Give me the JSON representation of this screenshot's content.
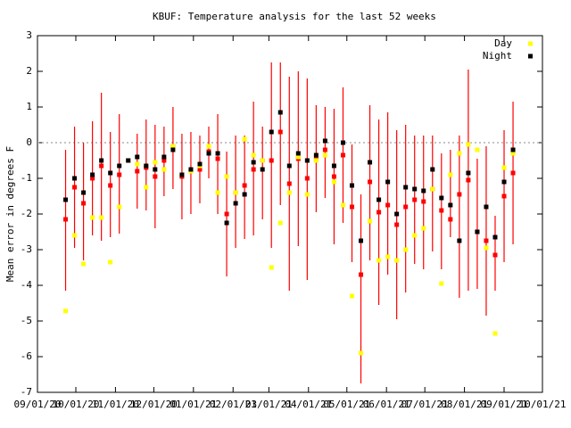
{
  "chart_data": {
    "type": "errorbar",
    "title": "KBUF: Temperature analysis for the last 52 weeks",
    "ylabel": "Mean error in degrees F",
    "x": [
      "09/23/20",
      "09/30/20",
      "10/07/20",
      "10/14/20",
      "10/21/20",
      "10/28/20",
      "11/04/20",
      "11/11/20",
      "11/18/20",
      "11/25/20",
      "12/02/20",
      "12/09/20",
      "12/16/20",
      "12/23/20",
      "12/30/20",
      "01/06/21",
      "01/13/21",
      "01/20/21",
      "01/27/21",
      "02/03/21",
      "02/10/21",
      "02/17/21",
      "02/24/21",
      "03/03/21",
      "03/10/21",
      "03/17/21",
      "03/24/21",
      "03/31/21",
      "04/07/21",
      "04/14/21",
      "04/21/21",
      "04/28/21",
      "05/05/21",
      "05/12/21",
      "05/19/21",
      "05/26/21",
      "06/02/21",
      "06/09/21",
      "06/16/21",
      "06/23/21",
      "06/30/21",
      "07/07/21",
      "07/14/21",
      "07/21/21",
      "07/28/21",
      "08/04/21",
      "08/11/21",
      "08/18/21",
      "08/25/21",
      "09/01/21",
      "09/08/21"
    ],
    "series": [
      {
        "name": "Day",
        "color": "#ffff00",
        "values": [
          -4.72,
          -2.6,
          -3.4,
          -2.1,
          -2.1,
          -3.35,
          -1.8,
          -0.5,
          -0.6,
          -1.25,
          -0.55,
          -0.75,
          -0.1,
          -0.9,
          -0.8,
          -0.65,
          -0.1,
          -1.4,
          -0.95,
          -1.4,
          0.1,
          -0.35,
          -0.5,
          -3.5,
          -2.25,
          -1.4,
          -0.4,
          -1.45,
          -0.5,
          -0.35,
          -1.1,
          -1.75,
          -4.3,
          -5.9,
          -2.2,
          -3.3,
          -3.2,
          -3.3,
          -3.0,
          -2.6,
          -2.4,
          -1.3,
          -3.95,
          -0.9,
          -0.3,
          -0.05,
          -0.2,
          -2.95,
          -5.35,
          -0.7,
          -0.3
        ]
      },
      {
        "name": "Night",
        "color": "#000000",
        "values": [
          -1.6,
          -1.0,
          -1.4,
          -0.9,
          -0.5,
          -0.85,
          -0.65,
          -0.5,
          -0.4,
          -0.65,
          -0.75,
          -0.4,
          -0.2,
          -0.9,
          -0.75,
          -0.6,
          -0.3,
          -0.3,
          -2.25,
          -1.7,
          -1.45,
          -0.55,
          -0.75,
          0.3,
          0.85,
          -0.65,
          -0.3,
          -0.5,
          -0.35,
          0.05,
          -0.65,
          0.0,
          -1.2,
          -2.75,
          -0.55,
          -1.6,
          -1.1,
          -2.0,
          -1.25,
          -1.3,
          -1.35,
          -0.75,
          -1.55,
          -1.75,
          -2.75,
          -0.85,
          -2.5,
          -1.8,
          -2.65,
          -1.1,
          -0.2
        ]
      }
    ],
    "mean_color": "#ff0000",
    "mean": [
      -2.15,
      -1.25,
      -1.7,
      -1.0,
      -0.65,
      -1.2,
      -0.9,
      -0.5,
      -0.8,
      -0.7,
      -0.95,
      -0.5,
      -0.1,
      -0.95,
      -0.8,
      -0.75,
      -0.25,
      -0.45,
      -2.0,
      -1.4,
      -1.2,
      -0.75,
      -0.5,
      -0.5,
      0.3,
      -1.15,
      -0.45,
      -1.0,
      -0.45,
      -0.2,
      -0.95,
      -0.35,
      -1.8,
      -3.7,
      -1.1,
      -1.95,
      -1.75,
      -2.3,
      -1.8,
      -1.6,
      -1.65,
      -1.3,
      -1.9,
      -2.15,
      -1.45,
      -1.05,
      -2.5,
      -2.75,
      -3.15,
      -1.5,
      -0.85
    ],
    "error_low": [
      -4.15,
      -2.95,
      -3.3,
      -2.6,
      -2.75,
      -2.65,
      -2.55,
      -0.5,
      -1.85,
      -1.9,
      -2.4,
      -1.5,
      -1.3,
      -2.15,
      -2.0,
      -1.7,
      -1.0,
      -2.0,
      -3.75,
      -2.95,
      -2.7,
      -2.6,
      -2.15,
      -2.95,
      -1.75,
      -4.15,
      -2.9,
      -3.85,
      -1.95,
      -1.55,
      -2.85,
      -2.25,
      -3.35,
      -6.75,
      -3.3,
      -4.55,
      -3.7,
      -4.95,
      -4.2,
      -3.4,
      -3.55,
      -3.05,
      -3.55,
      -2.65,
      -4.35,
      -4.15,
      -4.1,
      -4.85,
      -4.15,
      -3.35,
      -2.85
    ],
    "error_high": [
      -0.2,
      0.45,
      0.0,
      0.6,
      1.4,
      0.3,
      0.8,
      -0.5,
      0.25,
      0.65,
      0.5,
      0.45,
      1.0,
      0.25,
      0.3,
      0.2,
      0.45,
      0.8,
      -0.25,
      0.2,
      0.2,
      1.15,
      0.45,
      2.25,
      2.25,
      1.85,
      2.0,
      1.8,
      1.05,
      1.0,
      0.95,
      1.55,
      -0.05,
      -1.45,
      1.05,
      0.65,
      0.85,
      0.35,
      0.5,
      0.2,
      0.2,
      0.2,
      -0.3,
      -0.2,
      0.2,
      2.05,
      -0.45,
      -0.1,
      -2.05,
      0.35,
      1.15
    ],
    "xlim": [
      "09/01/20",
      "10/01/21"
    ],
    "xticks": [
      "09/01/20",
      "10/01/20",
      "11/01/20",
      "12/01/20",
      "01/01/21",
      "02/01/21",
      "03/01/21",
      "04/01/21",
      "05/01/21",
      "06/01/21",
      "07/01/21",
      "08/01/21",
      "09/01/21",
      "10/01/21"
    ],
    "ylim": [
      -7,
      3
    ],
    "yticks": [
      -7,
      -6,
      -5,
      -4,
      -3,
      -2,
      -1,
      0,
      1,
      2,
      3
    ],
    "zero_line": true,
    "legend": "top-right"
  }
}
